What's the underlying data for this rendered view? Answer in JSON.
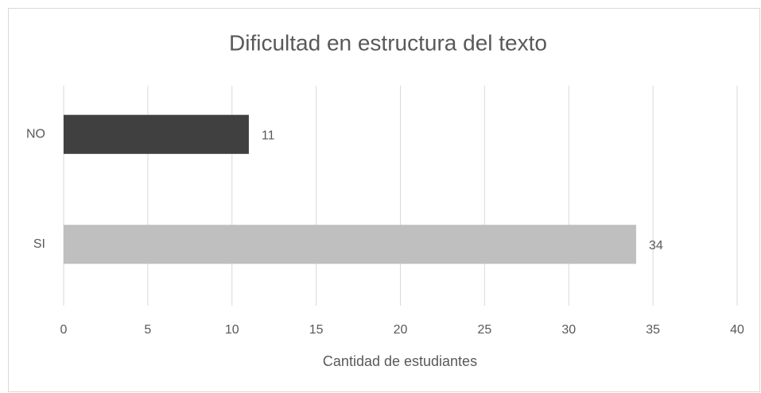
{
  "chart_data": {
    "type": "barh",
    "title": "Dificultad en estructura del texto",
    "categories": [
      "NO",
      "SI"
    ],
    "values": [
      11,
      34
    ],
    "colors": [
      "#404040",
      "#bfbfbf"
    ],
    "xlabel": "Cantidad de estudiantes",
    "xlim": [
      0,
      40
    ],
    "xticks": [
      0,
      5,
      10,
      15,
      20,
      25,
      30,
      35,
      40
    ],
    "grid": true
  }
}
